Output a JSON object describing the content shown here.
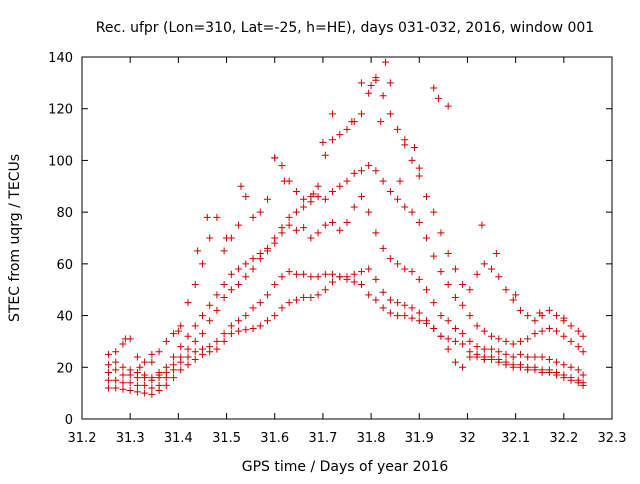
{
  "chart_data": {
    "type": "scatter",
    "title": "Rec. ufpr (Lon=310, Lat=-25, h=HE), days 031-032, 2016, window 001",
    "xlabel": "GPS time / Days of year 2016",
    "ylabel": "STEC from uqrg / TECUs",
    "xlim": [
      31.2,
      32.3
    ],
    "ylim": [
      0,
      140
    ],
    "xticks": [
      "31.2",
      "31.3",
      "31.4",
      "31.5",
      "31.6",
      "31.7",
      "31.8",
      "31.9",
      "32",
      "32.1",
      "32.2",
      "32.3"
    ],
    "yticks": [
      "0",
      "20",
      "40",
      "60",
      "80",
      "100",
      "120",
      "140"
    ],
    "grid": false,
    "legend": "none",
    "marker": "plus",
    "color": "#cc0000",
    "series": [
      {
        "x": [
          31.255,
          31.27,
          31.285,
          31.3,
          31.315,
          31.33,
          31.345,
          31.36,
          31.375,
          31.39,
          31.405,
          31.42,
          31.435,
          31.45,
          31.465,
          31.48,
          31.495,
          31.51,
          31.525,
          31.54,
          31.555,
          31.57,
          31.585,
          31.6,
          31.615,
          31.63,
          31.645,
          31.66,
          31.675,
          31.69,
          31.705,
          31.72,
          31.735,
          31.75,
          31.765,
          31.78,
          31.795,
          31.81,
          31.825,
          31.84,
          31.855,
          31.87,
          31.885,
          31.9,
          31.915,
          31.93,
          31.945,
          31.96,
          31.975,
          31.99,
          32.005,
          32.02,
          32.035,
          32.05,
          32.065,
          32.08,
          32.095,
          32.11,
          32.125,
          32.14,
          32.155,
          32.17,
          32.185,
          32.2,
          32.215,
          32.23,
          32.24
        ],
        "y": [
          12,
          12,
          11.5,
          11,
          10.5,
          10,
          9.5,
          11,
          13,
          16,
          19,
          21,
          23,
          25,
          26,
          27,
          30,
          33,
          34,
          34.5,
          35,
          36,
          38,
          40,
          43,
          45,
          46,
          47,
          47,
          48,
          50,
          53,
          55,
          54,
          53,
          52,
          48,
          46,
          43,
          41,
          40,
          40,
          39,
          38,
          37,
          35,
          32,
          27,
          22,
          20,
          24,
          24,
          23,
          23,
          22,
          21,
          20,
          20,
          19,
          19,
          18,
          18,
          17,
          16,
          15,
          14,
          13
        ]
      },
      {
        "x": [
          31.255,
          31.27,
          31.285,
          31.3,
          31.315,
          31.33,
          31.345,
          31.36,
          31.375,
          31.39,
          31.405,
          31.42,
          31.435,
          31.45,
          31.465,
          31.48,
          31.495,
          31.51,
          31.525,
          31.54,
          31.555,
          31.57,
          31.585,
          31.6,
          31.615,
          31.63,
          31.645,
          31.66,
          31.675,
          31.69,
          31.705,
          31.72,
          31.735,
          31.75,
          31.765,
          31.78,
          31.795,
          31.81,
          31.825,
          31.84,
          31.855,
          31.87,
          31.885,
          31.9,
          31.915,
          31.93,
          31.945,
          31.96,
          31.975,
          31.99,
          32.005,
          32.02,
          32.035,
          32.05,
          32.065,
          32.08,
          32.095,
          32.11,
          32.125,
          32.14,
          32.155,
          32.17,
          32.185,
          32.2,
          32.215,
          32.23,
          32.24
        ],
        "y": [
          15,
          15,
          14,
          14,
          13,
          13,
          12,
          13,
          16,
          19,
          22,
          24,
          26,
          27,
          28,
          30,
          33,
          36,
          38,
          40,
          43,
          45,
          48,
          52,
          55,
          57,
          56,
          56,
          55,
          55,
          56,
          56,
          55,
          55,
          56,
          57,
          58,
          54,
          49,
          46,
          45,
          44,
          43,
          41,
          38,
          35,
          32,
          31,
          30,
          29,
          26,
          25,
          24,
          24,
          23,
          22,
          21,
          21,
          20,
          20,
          19,
          19,
          18,
          17,
          16,
          15,
          14
        ]
      },
      {
        "x": [
          31.255,
          31.27,
          31.285,
          31.3,
          31.315,
          31.33,
          31.345,
          31.36,
          31.375,
          31.39,
          31.405,
          31.42,
          31.435,
          31.45,
          31.465,
          31.48,
          31.495,
          31.51,
          31.525,
          31.54,
          31.555,
          31.57,
          31.585,
          31.6,
          31.615,
          31.63,
          31.645,
          31.66,
          31.675,
          31.69,
          31.705,
          31.72,
          31.735,
          31.75,
          31.765,
          31.78,
          31.795,
          31.81,
          31.825,
          31.84,
          31.855,
          31.87,
          31.885,
          31.9,
          31.915,
          31.93,
          31.945,
          31.96,
          31.975,
          31.99,
          32.005,
          32.02,
          32.035,
          32.05,
          32.065,
          32.08,
          32.095,
          32.11,
          32.125,
          32.14,
          32.155,
          32.17,
          32.185,
          32.2,
          32.215,
          32.23,
          32.24
        ],
        "y": [
          18,
          19,
          17,
          17,
          16,
          16,
          15,
          16,
          18,
          21,
          24,
          27,
          30,
          33,
          38,
          42,
          47,
          50,
          52,
          55,
          58,
          62,
          65,
          68,
          72,
          75,
          73,
          74,
          70,
          72,
          75,
          76,
          73,
          76,
          82,
          86,
          80,
          72,
          66,
          62,
          60,
          58,
          57,
          54,
          50,
          45,
          40,
          38,
          35,
          33,
          30,
          28,
          27,
          27,
          26,
          25,
          24,
          25,
          24,
          24,
          24,
          23,
          22,
          21,
          20,
          19,
          17
        ]
      },
      {
        "x": [
          31.255,
          31.27,
          31.285,
          31.3,
          31.315,
          31.33,
          31.345,
          31.36,
          31.375,
          31.39,
          31.405,
          31.42,
          31.435,
          31.45,
          31.465,
          31.48,
          31.495,
          31.51,
          31.525,
          31.54,
          31.555,
          31.57,
          31.585,
          31.6,
          31.615,
          31.63,
          31.645,
          31.66,
          31.675,
          31.69,
          31.705,
          31.72,
          31.735,
          31.75,
          31.765,
          31.78,
          31.795,
          31.81,
          31.825,
          31.84,
          31.855,
          31.87,
          31.885,
          31.9,
          31.915,
          31.93,
          31.945,
          31.96,
          31.975,
          31.99,
          32.005,
          32.02,
          32.035,
          32.05,
          32.065,
          32.08,
          32.095,
          32.11,
          32.125,
          32.14,
          32.155,
          32.17,
          32.185,
          32.2,
          32.215,
          32.23,
          32.24
        ],
        "y": [
          21,
          22,
          20,
          19,
          18,
          17,
          16,
          17,
          20,
          24,
          28,
          32,
          36,
          40,
          44,
          48,
          52,
          56,
          58,
          60,
          62,
          64,
          66,
          70,
          74,
          78,
          80,
          82,
          84,
          86,
          85,
          88,
          90,
          92,
          95,
          96,
          98,
          96,
          92,
          88,
          85,
          82,
          80,
          76,
          70,
          63,
          57,
          52,
          47,
          44,
          40,
          36,
          34,
          32,
          31,
          30,
          29,
          30,
          31,
          33,
          34,
          35,
          34,
          32,
          30,
          28,
          26
        ]
      },
      {
        "x": [
          31.255,
          31.27,
          31.285,
          31.3,
          31.315,
          31.33,
          31.345,
          31.36,
          31.375,
          31.39,
          31.405,
          31.42,
          31.435,
          31.45,
          31.465,
          31.48,
          31.495,
          31.51,
          31.525,
          31.54,
          31.555,
          31.57,
          31.585,
          31.6,
          31.615,
          31.63,
          31.645,
          31.66,
          31.675,
          31.69,
          31.705,
          31.72,
          31.735,
          31.75,
          31.765,
          31.78,
          31.795,
          31.81,
          31.825,
          31.84,
          31.855,
          31.87,
          31.885,
          31.9,
          31.915,
          31.93,
          31.945,
          31.96,
          31.975,
          31.99,
          32.005,
          32.02,
          32.035,
          32.05,
          32.065,
          32.08,
          32.095,
          32.11,
          32.125,
          32.14,
          32.155,
          32.17,
          32.185,
          32.2,
          32.215,
          32.23,
          32.24
        ],
        "y": [
          25,
          26,
          29,
          31,
          24,
          22,
          25,
          26,
          30,
          33,
          36,
          45,
          52,
          60,
          70,
          78,
          65,
          70,
          75,
          86,
          78,
          80,
          85,
          101,
          98,
          92,
          88,
          85,
          86,
          90,
          102,
          108,
          110,
          112,
          115,
          118,
          126,
          132,
          125,
          118,
          112,
          106,
          100,
          94,
          86,
          80,
          72,
          64,
          58,
          52,
          50,
          56,
          60,
          58,
          55,
          50,
          46,
          42,
          40,
          38,
          40,
          42,
          40,
          38,
          36,
          34,
          32
        ]
      },
      {
        "x": [
          31.29,
          31.32,
          31.345,
          31.36,
          31.4,
          31.44,
          31.46,
          31.5,
          31.53,
          31.6,
          31.62,
          31.68,
          31.7,
          31.72,
          31.76,
          31.78,
          31.8,
          31.81,
          31.82,
          31.83,
          31.84,
          31.86,
          31.87,
          31.89,
          31.9,
          31.93,
          31.94,
          31.96,
          32.03,
          32.06,
          32.1,
          32.15,
          32.2
        ],
        "y": [
          31,
          20,
          22,
          18,
          34,
          65,
          78,
          70,
          90,
          101,
          92,
          87,
          107,
          118,
          115,
          130,
          129,
          131,
          115,
          138,
          130,
          92,
          108,
          105,
          97,
          128,
          124,
          121,
          75,
          64,
          48,
          41,
          39
        ]
      }
    ]
  }
}
